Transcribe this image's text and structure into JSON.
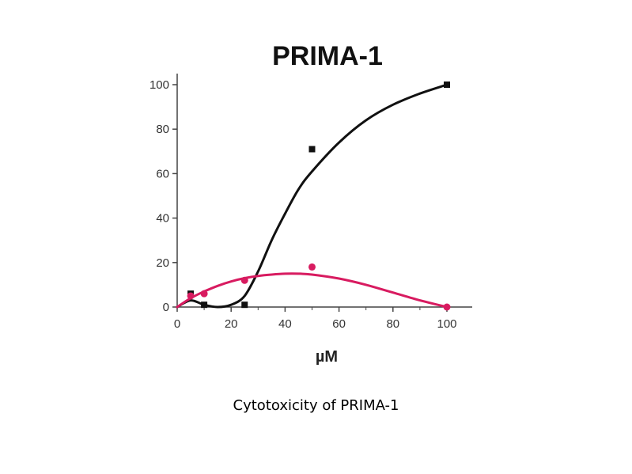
{
  "caption": "Cytotoxicity of PRIMA-1",
  "chart_data": {
    "type": "line",
    "title": "PRIMA-1",
    "xlabel": "µM",
    "ylabel": "",
    "xlim": [
      0,
      100
    ],
    "ylim": [
      0,
      100
    ],
    "xticks": [
      0,
      20,
      40,
      60,
      80,
      100
    ],
    "yticks": [
      0,
      20,
      40,
      60,
      80,
      100
    ],
    "grid": false,
    "series": [
      {
        "color": "#111111",
        "marker": "square",
        "points": [
          {
            "x": 5,
            "y": 6
          },
          {
            "x": 10,
            "y": 1
          },
          {
            "x": 25,
            "y": 1
          },
          {
            "x": 50,
            "y": 71
          },
          {
            "x": 100,
            "y": 100
          }
        ],
        "curve": [
          [
            0,
            0
          ],
          [
            5,
            3
          ],
          [
            10,
            1
          ],
          [
            15,
            0
          ],
          [
            20,
            1
          ],
          [
            25,
            5
          ],
          [
            30,
            16
          ],
          [
            35,
            30
          ],
          [
            40,
            42
          ],
          [
            45,
            53
          ],
          [
            50,
            61
          ],
          [
            60,
            74
          ],
          [
            70,
            84
          ],
          [
            80,
            91
          ],
          [
            90,
            96
          ],
          [
            100,
            100
          ]
        ]
      },
      {
        "color": "#d81b60",
        "marker": "circle",
        "points": [
          {
            "x": 5,
            "y": 5
          },
          {
            "x": 10,
            "y": 6
          },
          {
            "x": 25,
            "y": 12
          },
          {
            "x": 50,
            "y": 18
          },
          {
            "x": 100,
            "y": 0
          }
        ],
        "curve": [
          [
            0,
            0
          ],
          [
            5,
            4
          ],
          [
            10,
            7
          ],
          [
            15,
            9.5
          ],
          [
            20,
            11.5
          ],
          [
            25,
            13
          ],
          [
            30,
            14
          ],
          [
            35,
            14.6
          ],
          [
            40,
            15
          ],
          [
            45,
            15
          ],
          [
            50,
            14.6
          ],
          [
            60,
            12.8
          ],
          [
            70,
            10
          ],
          [
            80,
            6.5
          ],
          [
            90,
            3
          ],
          [
            100,
            0
          ]
        ]
      }
    ]
  }
}
